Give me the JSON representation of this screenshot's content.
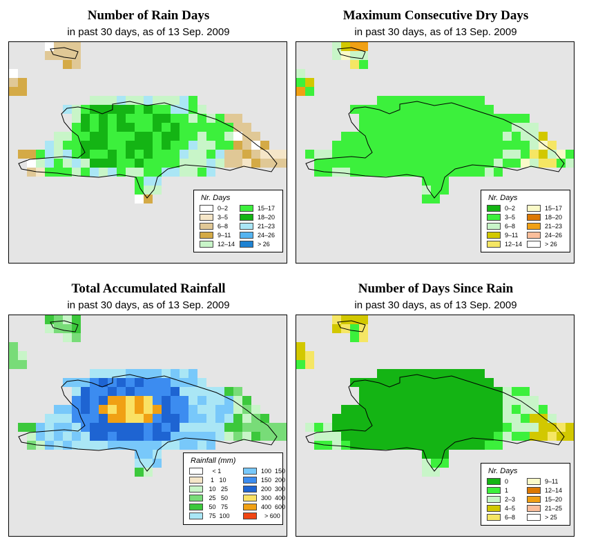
{
  "panels": [
    {
      "id": "rain-days",
      "title": "Number of Rain Days",
      "subtitle": "in past 30 days, as of  13 Sep. 2009",
      "legend": {
        "title": "Nr. Days",
        "items": [
          {
            "label": "0–2",
            "color": "#ffffff"
          },
          {
            "label": "3–5",
            "color": "#f5e6c8"
          },
          {
            "label": "6–8",
            "color": "#e0c896"
          },
          {
            "label": "9–11",
            "color": "#d4aa46"
          },
          {
            "label": "12–14",
            "color": "#c8f5c8"
          },
          {
            "label": "15–17",
            "color": "#3cf03c"
          },
          {
            "label": "18–20",
            "color": "#14b414"
          },
          {
            "label": "21–23",
            "color": "#aae6f5"
          },
          {
            "label": "24–26",
            "color": "#55b4f0"
          },
          {
            "label": "> 26",
            "color": "#1e82d2"
          }
        ]
      }
    },
    {
      "id": "dry-days",
      "title": "Maximum Consecutive Dry Days",
      "subtitle": "in past 30 days, as of  13 Sep. 2009",
      "legend": {
        "title": "Nr. Days",
        "items": [
          {
            "label": "0–2",
            "color": "#14b414"
          },
          {
            "label": "3–5",
            "color": "#3cf03c"
          },
          {
            "label": "6–8",
            "color": "#c8f5c8"
          },
          {
            "label": "9–11",
            "color": "#d2c800"
          },
          {
            "label": "12–14",
            "color": "#f5e664"
          },
          {
            "label": "15–17",
            "color": "#fafac8"
          },
          {
            "label": "18–20",
            "color": "#dc7800"
          },
          {
            "label": "21–23",
            "color": "#f0a014"
          },
          {
            "label": "24–26",
            "color": "#fabe9b"
          },
          {
            "label": "> 26",
            "color": "#ffffff"
          }
        ]
      }
    },
    {
      "id": "rainfall",
      "title": "Total Accumulated Rainfall",
      "subtitle": "in past 30 days, as of  13 Sep. 2009",
      "legend": {
        "title": "Rainfall (mm)",
        "items": [
          {
            "label": "   < 1",
            "color": "#ffffff"
          },
          {
            "label": "  1   10",
            "color": "#f5e6c8"
          },
          {
            "label": " 10   25",
            "color": "#c8f5c8"
          },
          {
            "label": " 25   50",
            "color": "#78dc78"
          },
          {
            "label": " 50   75",
            "color": "#3cc83c"
          },
          {
            "label": " 75  100",
            "color": "#aae6f5"
          },
          {
            "label": "100  150",
            "color": "#78c8fa"
          },
          {
            "label": "150  200",
            "color": "#3c8cf0"
          },
          {
            "label": "200  300",
            "color": "#1e64d2"
          },
          {
            "label": "300  400",
            "color": "#fae164"
          },
          {
            "label": "400  600",
            "color": "#f0a014"
          },
          {
            "label": "  > 600",
            "color": "#f04614"
          }
        ]
      }
    },
    {
      "id": "since-rain",
      "title": "Number of Days Since Rain",
      "subtitle": "in past 30 days, as of  13 Sep. 2009",
      "legend": {
        "title": "Nr. Days",
        "items": [
          {
            "label": "0",
            "color": "#14b414"
          },
          {
            "label": "1",
            "color": "#3cf03c"
          },
          {
            "label": "2–3",
            "color": "#c8f5c8"
          },
          {
            "label": "4–5",
            "color": "#d2c800"
          },
          {
            "label": "6–8",
            "color": "#f5e664"
          },
          {
            "label": "9–11",
            "color": "#fafac8"
          },
          {
            "label": "12–14",
            "color": "#dc7800"
          },
          {
            "label": "15–20",
            "color": "#f0a014"
          },
          {
            "label": "21–25",
            "color": "#fabe9b"
          },
          {
            "label": "> 25",
            "color": "#ffffff"
          }
        ]
      }
    }
  ]
}
